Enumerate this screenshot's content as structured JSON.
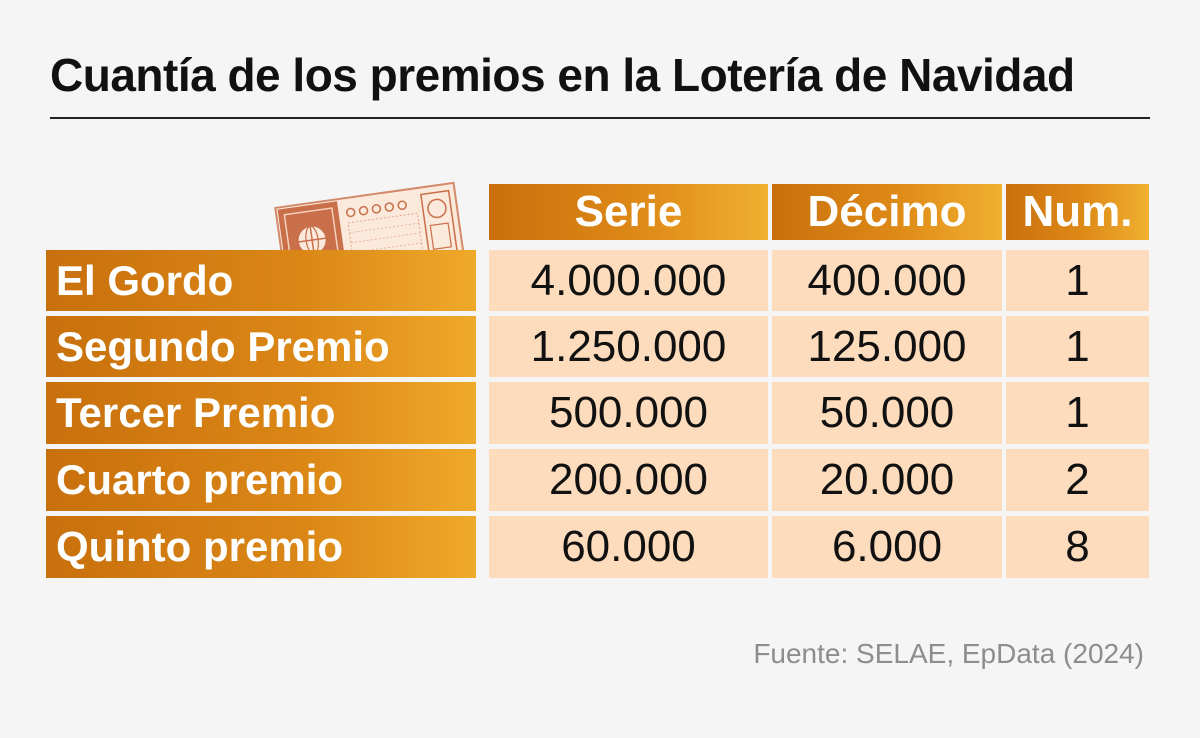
{
  "header": {
    "title": "Cuantía de los premios en la Lotería de Navidad"
  },
  "chart_data": {
    "type": "table",
    "title": "Cuantía de los premios en la Lotería de Navidad",
    "columns": [
      "Serie",
      "Décimo",
      "Num."
    ],
    "rows": [
      {
        "label": "El Gordo",
        "serie": "4.000.000",
        "decimo": "400.000",
        "num": "1"
      },
      {
        "label": "Segundo Premio",
        "serie": "1.250.000",
        "decimo": "125.000",
        "num": "1"
      },
      {
        "label": "Tercer Premio",
        "serie": "500.000",
        "decimo": "50.000",
        "num": "1"
      },
      {
        "label": "Cuarto premio",
        "serie": "200.000",
        "decimo": "20.000",
        "num": "2"
      },
      {
        "label": "Quinto premio",
        "serie": "60.000",
        "decimo": "6.000",
        "num": "8"
      }
    ]
  },
  "footer": {
    "source": "Fuente: SELAE, EpData (2024)"
  },
  "icons": {
    "ticket": "lottery-ticket-icon"
  },
  "colors": {
    "header_gradient_start": "#c9700d",
    "header_gradient_end": "#f0b030",
    "cell_background": "#fcdcbc",
    "background": "#f5f5f5"
  }
}
